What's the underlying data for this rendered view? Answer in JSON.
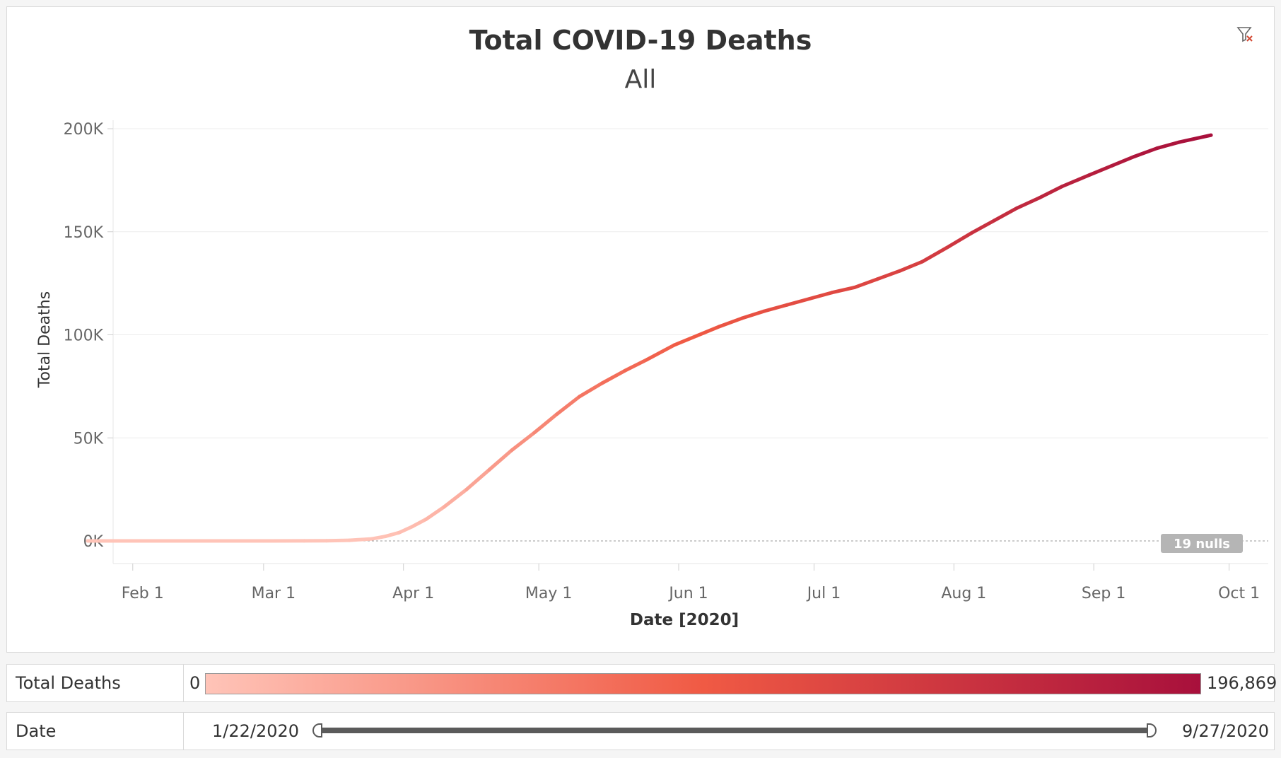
{
  "chart_data": {
    "type": "line",
    "title": "Total COVID-19 Deaths",
    "subtitle": "All",
    "xlabel": "Date [2020]",
    "ylabel": "Total Deaths",
    "x_ticks": [
      "Feb 1",
      "Mar 1",
      "Apr 1",
      "May 1",
      "Jun 1",
      "Jul 1",
      "Aug 1",
      "Sep 1",
      "Oct 1"
    ],
    "y_ticks": [
      "0K",
      "50K",
      "100K",
      "150K",
      "200K"
    ],
    "ylim": [
      0,
      200000
    ],
    "xlim": [
      "2020-01-30",
      "2020-10-02"
    ],
    "grid": true,
    "null_indicator": "19 nulls",
    "series": [
      {
        "values": [
          [
            "2020-01-22",
            0
          ],
          [
            "2020-02-15",
            1
          ],
          [
            "2020-03-01",
            2
          ],
          [
            "2020-03-10",
            30
          ],
          [
            "2020-03-15",
            70
          ],
          [
            "2020-03-20",
            300
          ],
          [
            "2020-03-25",
            1000
          ],
          [
            "2020-03-28",
            2200
          ],
          [
            "2020-03-31",
            4000
          ],
          [
            "2020-04-03",
            7000
          ],
          [
            "2020-04-06",
            10500
          ],
          [
            "2020-04-10",
            16500
          ],
          [
            "2020-04-15",
            25000
          ],
          [
            "2020-04-20",
            34500
          ],
          [
            "2020-04-25",
            44000
          ],
          [
            "2020-04-30",
            52500
          ],
          [
            "2020-05-05",
            61500
          ],
          [
            "2020-05-10",
            70000
          ],
          [
            "2020-05-15",
            76500
          ],
          [
            "2020-05-20",
            82500
          ],
          [
            "2020-05-25",
            88000
          ],
          [
            "2020-05-31",
            95000
          ],
          [
            "2020-06-05",
            99500
          ],
          [
            "2020-06-10",
            104000
          ],
          [
            "2020-06-15",
            108000
          ],
          [
            "2020-06-20",
            111500
          ],
          [
            "2020-06-25",
            114500
          ],
          [
            "2020-06-30",
            117500
          ],
          [
            "2020-07-05",
            120500
          ],
          [
            "2020-07-10",
            123000
          ],
          [
            "2020-07-15",
            127000
          ],
          [
            "2020-07-20",
            131000
          ],
          [
            "2020-07-25",
            135500
          ],
          [
            "2020-07-31",
            143000
          ],
          [
            "2020-08-05",
            149500
          ],
          [
            "2020-08-10",
            155500
          ],
          [
            "2020-08-15",
            161500
          ],
          [
            "2020-08-20",
            166500
          ],
          [
            "2020-08-25",
            172000
          ],
          [
            "2020-08-31",
            177500
          ],
          [
            "2020-09-05",
            182000
          ],
          [
            "2020-09-10",
            186500
          ],
          [
            "2020-09-15",
            190500
          ],
          [
            "2020-09-20",
            193500
          ],
          [
            "2020-09-27",
            196869
          ]
        ]
      }
    ],
    "colors": {
      "low": "#ffc4b8",
      "mid": "#f05a44",
      "high": "#a8103c"
    }
  },
  "legend": {
    "label": "Total Deaths",
    "min": "0",
    "max": "196,869"
  },
  "date_filter": {
    "label": "Date",
    "start": "1/22/2020",
    "end": "9/27/2020"
  },
  "icons": {
    "clear_filter": "filter-clear-icon"
  }
}
